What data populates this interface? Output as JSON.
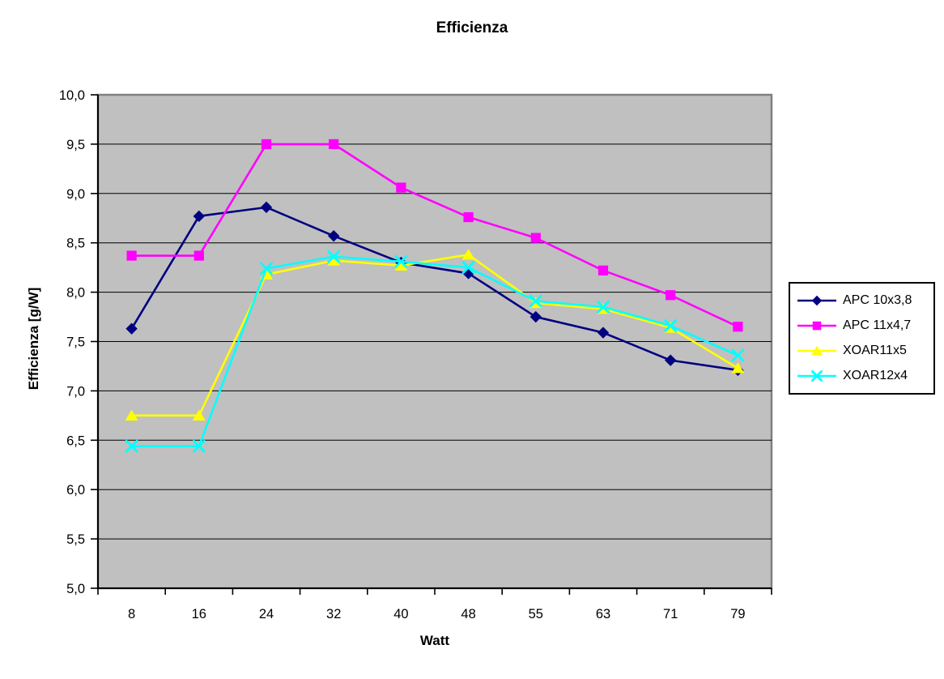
{
  "chart_data": {
    "type": "line",
    "title": "Efficienza",
    "xlabel": "Watt",
    "ylabel": "Efficienza [g/W]",
    "categories": [
      "8",
      "16",
      "24",
      "32",
      "40",
      "48",
      "55",
      "63",
      "71",
      "79"
    ],
    "ylim": [
      5.0,
      10.0
    ],
    "ytick_step": 0.5,
    "y_tick_values": [
      5.0,
      5.5,
      6.0,
      6.5,
      7.0,
      7.5,
      8.0,
      8.5,
      9.0,
      9.5,
      10.0
    ],
    "y_tick_labels": [
      "5,0",
      "5,5",
      "6,0",
      "6,5",
      "7,0",
      "7,5",
      "8,0",
      "8,5",
      "9,0",
      "9,5",
      "10,0"
    ],
    "grid": "horizontal",
    "legend_position": "right",
    "colors": {
      "plot_background": "#c0c0c0",
      "plot_border": "#808080",
      "gridline": "#000000",
      "axis": "#000000",
      "text": "#000000",
      "legend_background": "#ffffff",
      "legend_border": "#000000"
    },
    "series": [
      {
        "name": "APC 10x3,8",
        "color": "#000080",
        "marker": "diamond",
        "values": [
          7.63,
          8.77,
          8.86,
          8.57,
          8.3,
          8.19,
          7.75,
          7.59,
          7.31,
          7.21
        ]
      },
      {
        "name": "APC 11x4,7",
        "color": "#ff00ff",
        "marker": "square",
        "values": [
          8.37,
          8.37,
          9.5,
          9.5,
          9.06,
          8.76,
          8.55,
          8.22,
          7.97,
          7.65
        ]
      },
      {
        "name": "XOAR11x5",
        "color": "#ffff00",
        "marker": "triangle",
        "values": [
          6.75,
          6.75,
          8.18,
          8.32,
          8.27,
          8.38,
          7.89,
          7.83,
          7.64,
          7.23
        ]
      },
      {
        "name": "XOAR12x4",
        "color": "#00ffff",
        "marker": "x",
        "values": [
          6.44,
          6.44,
          8.24,
          8.36,
          8.31,
          8.25,
          7.91,
          7.85,
          7.66,
          7.36
        ]
      }
    ]
  }
}
